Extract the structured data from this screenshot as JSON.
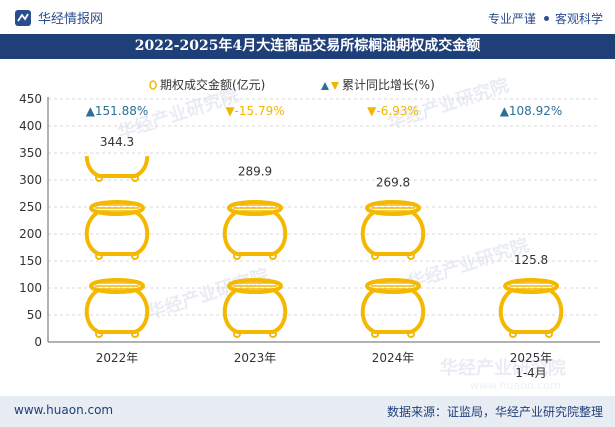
{
  "header": {
    "brand": "华经情报网",
    "links": [
      "专业严谨",
      "客观科学"
    ]
  },
  "title": "2022-2025年4月大连商品交易所棕榈油期权成交金额",
  "footer": {
    "url": "www.huaon.com",
    "source": "数据来源：证监局，华经产业研究院整理"
  },
  "watermark": {
    "text": "华经产业研究院",
    "sub": "www.huaon.com"
  },
  "chart_data": {
    "type": "bar",
    "title": "2022-2025年4月大连商品交易所棕榈油期权成交金额",
    "categories": [
      "2022年",
      "2023年",
      "2024年",
      "2025年\n1-4月"
    ],
    "category_lines": [
      [
        "2022年"
      ],
      [
        "2023年"
      ],
      [
        "2024年"
      ],
      [
        "2025年",
        "1-4月"
      ]
    ],
    "series": [
      {
        "name": "期权成交金额(亿元)",
        "values": [
          344.3,
          289.9,
          269.8,
          125.8
        ],
        "color": "#f5b800"
      },
      {
        "name": "累计同比增长(%)",
        "values": [
          151.88,
          -15.79,
          -6.93,
          108.92
        ]
      }
    ],
    "growth_labels": [
      "▲151.88%",
      "▼-15.79%",
      "▼-6.93%",
      "▲108.92%"
    ],
    "colors": {
      "up": "#2a6f97",
      "down": "#f2b600",
      "bar": "#f5b800"
    },
    "legend": [
      "期权成交金额(亿元)",
      "累计同比增长(%)"
    ],
    "legend_position": "top-center",
    "ylim": [
      0,
      450
    ],
    "yticks": [
      0,
      50,
      100,
      150,
      200,
      250,
      300,
      350,
      400,
      450
    ],
    "xlabel": "",
    "ylabel": ""
  }
}
